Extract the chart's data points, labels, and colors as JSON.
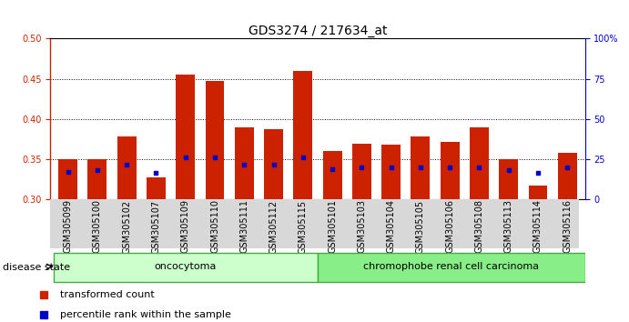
{
  "title": "GDS3274 / 217634_at",
  "samples": [
    "GSM305099",
    "GSM305100",
    "GSM305102",
    "GSM305107",
    "GSM305109",
    "GSM305110",
    "GSM305111",
    "GSM305112",
    "GSM305115",
    "GSM305101",
    "GSM305103",
    "GSM305104",
    "GSM305105",
    "GSM305106",
    "GSM305108",
    "GSM305113",
    "GSM305114",
    "GSM305116"
  ],
  "transformed_count": [
    0.35,
    0.35,
    0.378,
    0.328,
    0.455,
    0.447,
    0.39,
    0.388,
    0.46,
    0.36,
    0.37,
    0.368,
    0.378,
    0.372,
    0.39,
    0.35,
    0.317,
    0.358
  ],
  "percentile_rank_y": [
    0.335,
    0.337,
    0.343,
    0.333,
    0.353,
    0.352,
    0.343,
    0.343,
    0.353,
    0.338,
    0.34,
    0.34,
    0.34,
    0.34,
    0.34,
    0.337,
    0.333,
    0.34
  ],
  "ymin": 0.3,
  "ymax": 0.5,
  "yticks_left": [
    0.3,
    0.35,
    0.4,
    0.45,
    0.5
  ],
  "yticks_right": [
    0,
    25,
    50,
    75,
    100
  ],
  "group_labels": [
    "oncocytoma",
    "chromophobe renal cell carcinoma"
  ],
  "group1_count": 9,
  "group2_count": 9,
  "group1_color": "#ccffcc",
  "group2_color": "#88ee88",
  "group_border_color": "#44aa44",
  "bar_color": "#cc2200",
  "percentile_color": "#0000cc",
  "baseline": 0.3,
  "bar_width": 0.65,
  "disease_state_label": "disease state",
  "legend_items": [
    "transformed count",
    "percentile rank within the sample"
  ],
  "legend_colors": [
    "#cc2200",
    "#0000cc"
  ],
  "title_fontsize": 10,
  "tick_fontsize": 7,
  "label_fontsize": 8
}
